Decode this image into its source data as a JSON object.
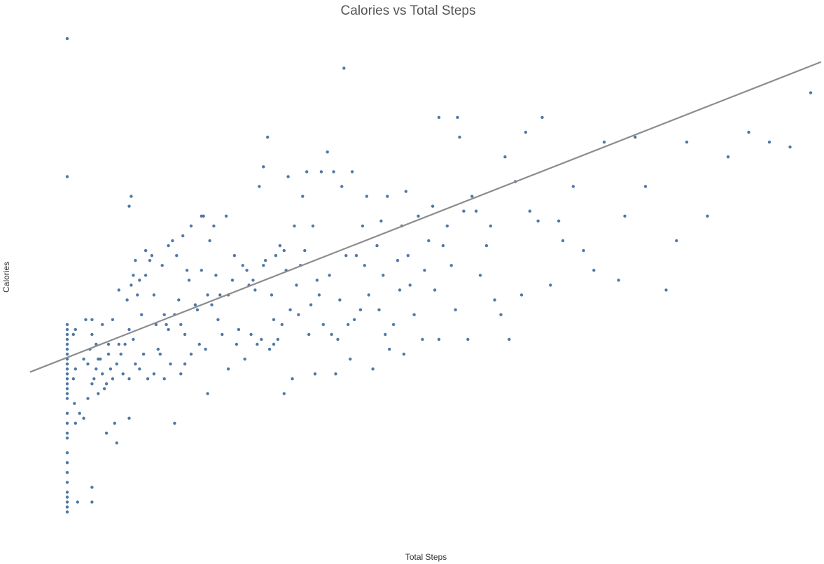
{
  "chart_data": {
    "type": "scatter",
    "title": "Calories vs Total Steps",
    "xlabel": "Total Steps",
    "ylabel": "Calories",
    "xlim": [
      0,
      38000
    ],
    "ylim": [
      -300,
      5000
    ],
    "grid": false,
    "colors": {
      "points": "#4e79a7",
      "trend": "#8c8c8c"
    },
    "trend_line": {
      "type": "linear",
      "intercept": 1666,
      "slope": 0.0821
    },
    "points": [
      [
        0,
        4900
      ],
      [
        0,
        3500
      ],
      [
        0,
        2000
      ],
      [
        0,
        1950
      ],
      [
        0,
        1900
      ],
      [
        0,
        1850
      ],
      [
        0,
        1800
      ],
      [
        0,
        1750
      ],
      [
        0,
        1700
      ],
      [
        0,
        1650
      ],
      [
        0,
        1600
      ],
      [
        0,
        1550
      ],
      [
        0,
        1500
      ],
      [
        0,
        1450
      ],
      [
        0,
        1400
      ],
      [
        0,
        1350
      ],
      [
        0,
        1300
      ],
      [
        0,
        1250
      ],
      [
        0,
        1100
      ],
      [
        0,
        1000
      ],
      [
        0,
        900
      ],
      [
        0,
        850
      ],
      [
        0,
        700
      ],
      [
        0,
        600
      ],
      [
        0,
        500
      ],
      [
        0,
        400
      ],
      [
        0,
        300
      ],
      [
        0,
        250
      ],
      [
        0,
        200
      ],
      [
        0,
        150
      ],
      [
        0,
        100
      ],
      [
        300,
        1450
      ],
      [
        300,
        1900
      ],
      [
        350,
        1200
      ],
      [
        400,
        1000
      ],
      [
        400,
        1950
      ],
      [
        400,
        1550
      ],
      [
        500,
        200
      ],
      [
        600,
        1100
      ],
      [
        800,
        1650
      ],
      [
        800,
        1050
      ],
      [
        900,
        2050
      ],
      [
        1000,
        1600
      ],
      [
        1000,
        1250
      ],
      [
        1100,
        1750
      ],
      [
        1200,
        1900
      ],
      [
        1200,
        2050
      ],
      [
        1200,
        1400
      ],
      [
        1200,
        350
      ],
      [
        1200,
        200
      ],
      [
        1300,
        1450
      ],
      [
        1400,
        1800
      ],
      [
        1500,
        1650
      ],
      [
        1400,
        1550
      ],
      [
        1500,
        1300
      ],
      [
        1600,
        1650
      ],
      [
        1700,
        2000
      ],
      [
        1700,
        1500
      ],
      [
        1800,
        1350
      ],
      [
        1900,
        1400
      ],
      [
        1900,
        900
      ],
      [
        2000,
        1700
      ],
      [
        2000,
        1800
      ],
      [
        2100,
        1550
      ],
      [
        2200,
        2050
      ],
      [
        2200,
        1450
      ],
      [
        2300,
        1000
      ],
      [
        2400,
        800
      ],
      [
        2400,
        1600
      ],
      [
        2500,
        2350
      ],
      [
        2500,
        1800
      ],
      [
        2600,
        1700
      ],
      [
        2700,
        1500
      ],
      [
        2800,
        1800
      ],
      [
        2900,
        2250
      ],
      [
        3000,
        1450
      ],
      [
        3000,
        3200
      ],
      [
        3100,
        3300
      ],
      [
        3000,
        1950
      ],
      [
        3000,
        1050
      ],
      [
        3100,
        2400
      ],
      [
        3200,
        2500
      ],
      [
        3200,
        1850
      ],
      [
        3300,
        2650
      ],
      [
        3300,
        1600
      ],
      [
        3400,
        2300
      ],
      [
        3500,
        2450
      ],
      [
        3500,
        1550
      ],
      [
        3600,
        2100
      ],
      [
        3700,
        1700
      ],
      [
        3800,
        2500
      ],
      [
        3800,
        2750
      ],
      [
        3900,
        1450
      ],
      [
        4000,
        2650
      ],
      [
        4100,
        2700
      ],
      [
        4200,
        1500
      ],
      [
        4200,
        2300
      ],
      [
        4300,
        2000
      ],
      [
        4400,
        1750
      ],
      [
        4500,
        1700
      ],
      [
        4600,
        2600
      ],
      [
        4700,
        2100
      ],
      [
        4700,
        1450
      ],
      [
        4800,
        2000
      ],
      [
        4900,
        2800
      ],
      [
        4900,
        1950
      ],
      [
        5000,
        1600
      ],
      [
        5100,
        2850
      ],
      [
        5200,
        2100
      ],
      [
        5200,
        1000
      ],
      [
        5300,
        2700
      ],
      [
        5400,
        2250
      ],
      [
        5500,
        1500
      ],
      [
        5500,
        2000
      ],
      [
        5600,
        2900
      ],
      [
        5700,
        1900
      ],
      [
        5700,
        1600
      ],
      [
        5800,
        2550
      ],
      [
        5900,
        2450
      ],
      [
        6000,
        1700
      ],
      [
        6000,
        3000
      ],
      [
        6200,
        2200
      ],
      [
        6300,
        2150
      ],
      [
        6400,
        1800
      ],
      [
        6500,
        3100
      ],
      [
        6600,
        3100
      ],
      [
        6500,
        2550
      ],
      [
        6700,
        1750
      ],
      [
        6800,
        2300
      ],
      [
        6800,
        1300
      ],
      [
        6900,
        2850
      ],
      [
        7000,
        2200
      ],
      [
        7100,
        3000
      ],
      [
        7200,
        2500
      ],
      [
        7300,
        2050
      ],
      [
        7400,
        2300
      ],
      [
        7500,
        1900
      ],
      [
        7700,
        3100
      ],
      [
        7800,
        1550
      ],
      [
        7800,
        2300
      ],
      [
        8000,
        2450
      ],
      [
        8100,
        2700
      ],
      [
        8200,
        1800
      ],
      [
        8300,
        1950
      ],
      [
        8500,
        2600
      ],
      [
        8600,
        1650
      ],
      [
        8700,
        2550
      ],
      [
        8800,
        2400
      ],
      [
        8900,
        1900
      ],
      [
        9000,
        2450
      ],
      [
        9100,
        2350
      ],
      [
        9200,
        1800
      ],
      [
        9300,
        3400
      ],
      [
        9400,
        1850
      ],
      [
        9500,
        2600
      ],
      [
        9500,
        3600
      ],
      [
        9600,
        2650
      ],
      [
        9700,
        3900
      ],
      [
        9800,
        1750
      ],
      [
        9900,
        2300
      ],
      [
        10000,
        1800
      ],
      [
        10000,
        2050
      ],
      [
        10100,
        2700
      ],
      [
        10200,
        1850
      ],
      [
        10300,
        2800
      ],
      [
        10400,
        2000
      ],
      [
        10500,
        2750
      ],
      [
        10500,
        1300
      ],
      [
        10600,
        2550
      ],
      [
        10700,
        3500
      ],
      [
        10800,
        2150
      ],
      [
        10900,
        1450
      ],
      [
        11000,
        3000
      ],
      [
        11100,
        2400
      ],
      [
        11200,
        2100
      ],
      [
        11300,
        2600
      ],
      [
        11400,
        3300
      ],
      [
        11500,
        2750
      ],
      [
        11600,
        3550
      ],
      [
        11700,
        1900
      ],
      [
        11800,
        2200
      ],
      [
        11900,
        3000
      ],
      [
        12000,
        1500
      ],
      [
        12100,
        2450
      ],
      [
        12200,
        2300
      ],
      [
        12300,
        3550
      ],
      [
        12400,
        2000
      ],
      [
        12600,
        3750
      ],
      [
        12700,
        2500
      ],
      [
        12800,
        1900
      ],
      [
        12900,
        3550
      ],
      [
        13000,
        1500
      ],
      [
        13100,
        1850
      ],
      [
        13200,
        2250
      ],
      [
        13300,
        3400
      ],
      [
        13400,
        4600
      ],
      [
        13500,
        2700
      ],
      [
        13600,
        2000
      ],
      [
        13700,
        1650
      ],
      [
        13800,
        3550
      ],
      [
        13900,
        2050
      ],
      [
        14000,
        2700
      ],
      [
        14200,
        2150
      ],
      [
        14300,
        3000
      ],
      [
        14400,
        2600
      ],
      [
        14500,
        3300
      ],
      [
        14600,
        2300
      ],
      [
        14800,
        1550
      ],
      [
        15000,
        2800
      ],
      [
        15100,
        2150
      ],
      [
        15200,
        3050
      ],
      [
        15300,
        2500
      ],
      [
        15400,
        1900
      ],
      [
        15500,
        3300
      ],
      [
        15600,
        1750
      ],
      [
        15800,
        2000
      ],
      [
        16000,
        2650
      ],
      [
        16100,
        2350
      ],
      [
        16200,
        3000
      ],
      [
        16300,
        1700
      ],
      [
        16400,
        3350
      ],
      [
        16500,
        2700
      ],
      [
        16600,
        2400
      ],
      [
        16800,
        2100
      ],
      [
        17000,
        3100
      ],
      [
        17200,
        1850
      ],
      [
        17300,
        2550
      ],
      [
        17500,
        2850
      ],
      [
        17700,
        3200
      ],
      [
        17800,
        2350
      ],
      [
        18000,
        1850
      ],
      [
        18000,
        4100
      ],
      [
        18200,
        2800
      ],
      [
        18400,
        3000
      ],
      [
        18600,
        2600
      ],
      [
        18800,
        2150
      ],
      [
        18900,
        4100
      ],
      [
        19000,
        3900
      ],
      [
        19200,
        3150
      ],
      [
        19400,
        1850
      ],
      [
        19600,
        3300
      ],
      [
        19800,
        3150
      ],
      [
        20000,
        2500
      ],
      [
        20300,
        2800
      ],
      [
        20500,
        3000
      ],
      [
        20700,
        2250
      ],
      [
        21000,
        2100
      ],
      [
        21200,
        3700
      ],
      [
        21400,
        1850
      ],
      [
        21700,
        3450
      ],
      [
        22000,
        2300
      ],
      [
        22200,
        3950
      ],
      [
        22400,
        3150
      ],
      [
        22800,
        3050
      ],
      [
        23000,
        4100
      ],
      [
        23400,
        2400
      ],
      [
        23800,
        3050
      ],
      [
        24000,
        2850
      ],
      [
        24500,
        3400
      ],
      [
        25000,
        2750
      ],
      [
        25500,
        2550
      ],
      [
        26000,
        3850
      ],
      [
        26700,
        2450
      ],
      [
        27000,
        3100
      ],
      [
        27500,
        3900
      ],
      [
        28000,
        3400
      ],
      [
        29000,
        2350
      ],
      [
        29500,
        2850
      ],
      [
        30000,
        3850
      ],
      [
        31000,
        3100
      ],
      [
        32000,
        3700
      ],
      [
        33000,
        3950
      ],
      [
        34000,
        3850
      ],
      [
        35000,
        3800
      ],
      [
        36000,
        4350
      ],
      [
        37000,
        4250
      ],
      [
        37500,
        3900
      ]
    ]
  }
}
